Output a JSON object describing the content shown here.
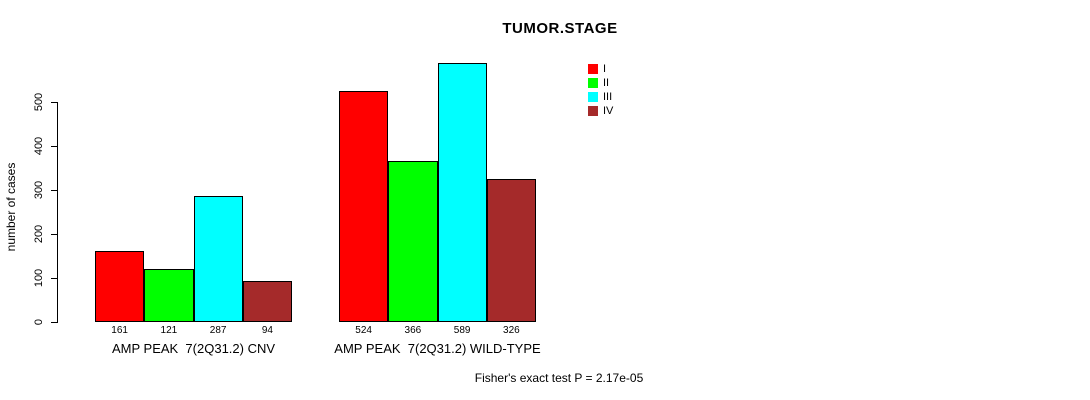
{
  "title": "TUMOR.STAGE",
  "footer": "Fisher's exact test P = 2.17e-05",
  "chart_data": {
    "type": "bar",
    "title": "TUMOR.STAGE",
    "xlabel": "",
    "ylabel": "number of cases",
    "ylim": [
      0,
      500
    ],
    "yticks": [
      0,
      100,
      200,
      300,
      400,
      500
    ],
    "grid": false,
    "legend_position": "top-right",
    "series_labels": [
      "I",
      "II",
      "III",
      "IV"
    ],
    "colors": [
      "#FF0000",
      "#00FF00",
      "#00FFFF",
      "#A52A2A"
    ],
    "groups": [
      {
        "label": "AMP PEAK  7(2Q31.2) CNV",
        "values": [
          161,
          121,
          287,
          94
        ]
      },
      {
        "label": "AMP PEAK  7(2Q31.2) WILD-TYPE",
        "values": [
          524,
          366,
          589,
          326
        ]
      }
    ],
    "annotation": "Fisher's exact test P = 2.17e-05"
  }
}
